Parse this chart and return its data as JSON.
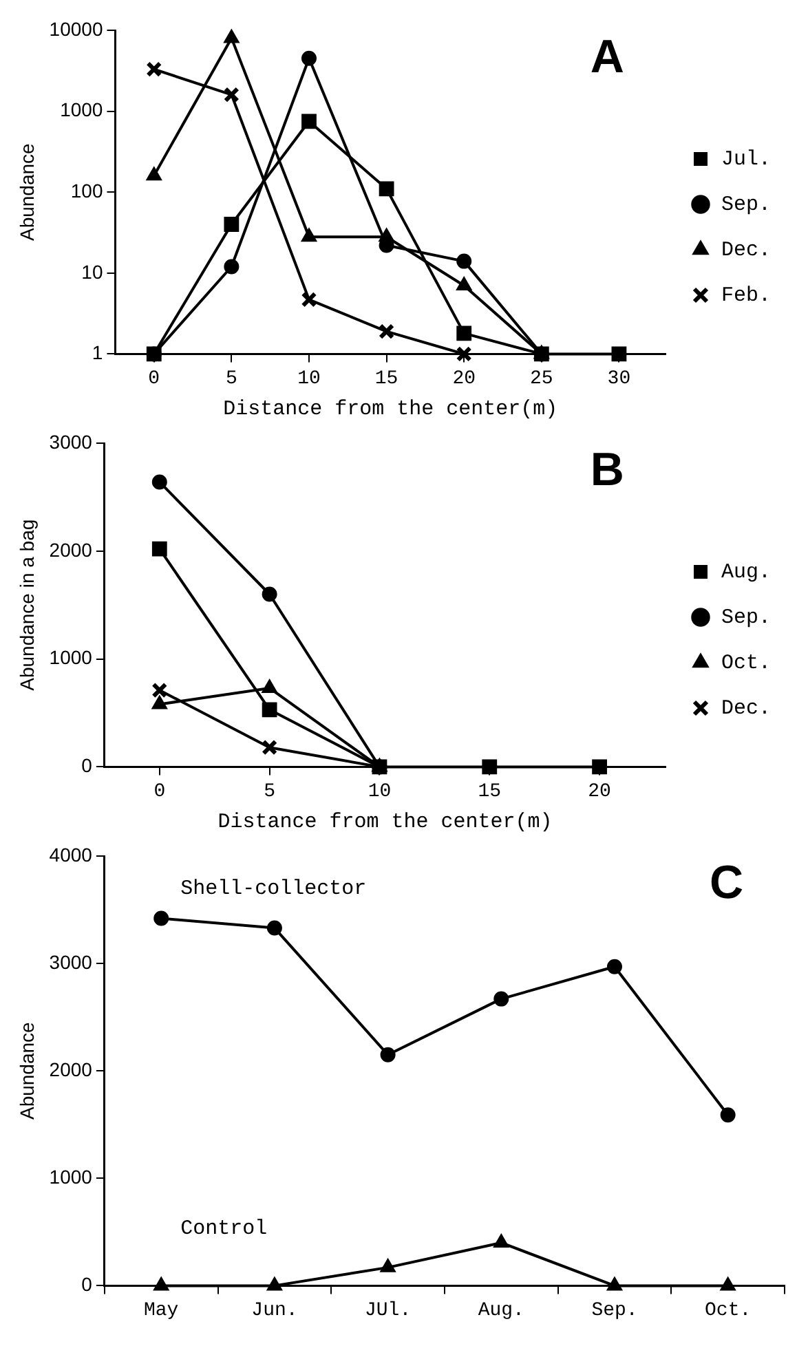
{
  "chart_data": [
    {
      "type": "line",
      "annotations": [
        "A"
      ],
      "xlabel": "Distance from the center(m)",
      "ylabel": "Abundance",
      "log": "y",
      "grid": false,
      "legend": "right",
      "xlim": [
        -2.5,
        33
      ],
      "xticks": [
        0,
        5,
        10,
        15,
        20,
        25,
        30
      ],
      "ylim": [
        1,
        10000
      ],
      "yticks": [
        1,
        10,
        100,
        1000,
        10000
      ],
      "x": [
        0,
        5,
        10,
        15,
        20,
        25,
        30
      ],
      "series": [
        {
          "name": "Jul.",
          "color": "#000000",
          "marker": "square",
          "values": [
            1,
            40,
            750,
            110,
            1.8,
            1,
            1
          ]
        },
        {
          "name": "Sep.",
          "color": "#000000",
          "marker": "circle",
          "values": [
            1,
            12,
            4500,
            22,
            14,
            1,
            null
          ]
        },
        {
          "name": "Dec.",
          "color": "#000000",
          "marker": "triangle",
          "values": [
            160,
            8000,
            28,
            28,
            7,
            1,
            null
          ]
        },
        {
          "name": "Feb.",
          "color": "#000000",
          "marker": "cross",
          "values": [
            3300,
            1600,
            4.7,
            1.9,
            1,
            null,
            null
          ]
        }
      ]
    },
    {
      "type": "line",
      "annotations": [
        "B"
      ],
      "xlabel": "Distance from the center(m)",
      "ylabel": "Abundance in a bag",
      "grid": false,
      "legend": "right",
      "xlim": [
        -2.5,
        23
      ],
      "xticks": [
        0,
        5,
        10,
        15,
        20
      ],
      "ylim": [
        0,
        3000
      ],
      "yticks": [
        0,
        1000,
        2000,
        3000
      ],
      "x": [
        0,
        5,
        10,
        15,
        20
      ],
      "series": [
        {
          "name": "Aug.",
          "color": "#000000",
          "marker": "square",
          "values": [
            2020,
            530,
            0,
            0,
            0
          ]
        },
        {
          "name": "Sep.",
          "color": "#000000",
          "marker": "circle",
          "values": [
            2640,
            1600,
            0,
            null,
            null
          ]
        },
        {
          "name": "Oct.",
          "color": "#000000",
          "marker": "triangle",
          "values": [
            580,
            730,
            0,
            null,
            null
          ]
        },
        {
          "name": "Dec.",
          "color": "#000000",
          "marker": "cross",
          "values": [
            710,
            180,
            0,
            null,
            null
          ]
        }
      ]
    },
    {
      "type": "line",
      "annotations": [
        "C"
      ],
      "ylabel": "Abundance",
      "grid": false,
      "legend": false,
      "ylim": [
        0,
        4000
      ],
      "yticks": [
        0,
        1000,
        2000,
        3000,
        4000
      ],
      "categories": [
        "May",
        "Jun.",
        "JUl.",
        "Aug.",
        "Sep.",
        "Oct."
      ],
      "series": [
        {
          "name": "Shell-collector",
          "color": "#000000",
          "marker": "circle",
          "values": [
            3420,
            3330,
            2150,
            2670,
            2970,
            1590
          ]
        },
        {
          "name": "Control",
          "color": "#000000",
          "marker": "triangle",
          "values": [
            0,
            0,
            170,
            400,
            0,
            0
          ]
        }
      ]
    }
  ]
}
